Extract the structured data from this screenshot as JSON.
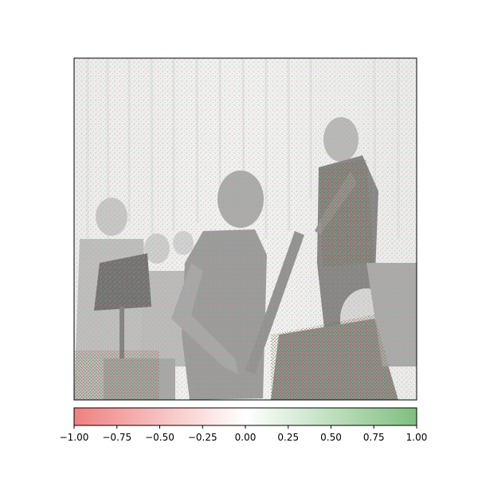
{
  "figure": {
    "kind": "attribution-heatmap-overlay",
    "background_image_icon": "orchestra-rehearsal-photo",
    "colormap": {
      "negative_color": "#f08080",
      "mid_color": "#ffffff",
      "positive_color": "#7fbf7f"
    }
  },
  "chart_data": {
    "type": "heatmap",
    "colorbar": {
      "orientation": "horizontal",
      "range": [
        -1.0,
        1.0
      ],
      "ticks": [
        -1.0,
        -0.75,
        -0.5,
        -0.25,
        0.0,
        0.25,
        0.5,
        0.75,
        1.0
      ],
      "tick_labels": [
        "−1.00",
        "−0.75",
        "−0.50",
        "−0.25",
        "0.00",
        "0.25",
        "0.50",
        "0.75",
        "1.00"
      ]
    }
  }
}
